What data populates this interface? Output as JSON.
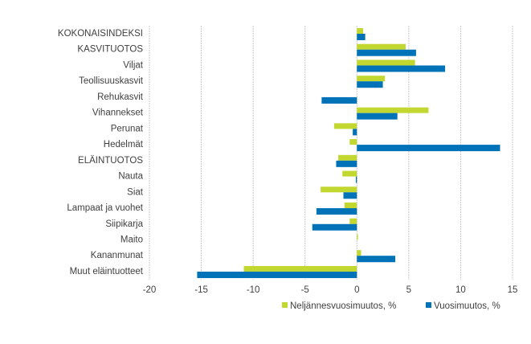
{
  "chart_data": {
    "type": "bar",
    "orientation": "horizontal",
    "categories": [
      "KOKONAISINDEKSI",
      "KASVITUOTOS",
      "Viljat",
      "Teollisuuskasvit",
      "Rehukasvit",
      "Vihannekset",
      "Perunat",
      "Hedelmät",
      "ELÄINTUOTOS",
      "Nauta",
      "Siat",
      "Lampaat ja vuohet",
      "Siipikarja",
      "Maito",
      "Kananmunat",
      "Muut eläintuotteet"
    ],
    "series": [
      {
        "name": "Neljännesvuosimuutos, %",
        "color": "#c2d72f",
        "values": [
          0.6,
          4.7,
          5.6,
          2.7,
          0.0,
          6.9,
          -2.2,
          -0.7,
          -1.8,
          -1.4,
          -3.5,
          -1.2,
          -0.7,
          0.1,
          0.4,
          -10.9
        ]
      },
      {
        "name": "Vuosimuutos, %",
        "color": "#0072b8",
        "values": [
          0.8,
          5.7,
          8.5,
          2.5,
          -3.4,
          3.9,
          -0.4,
          13.8,
          -2.0,
          -0.1,
          -1.3,
          -3.9,
          -4.3,
          0.0,
          3.7,
          -15.4
        ]
      }
    ],
    "xlim": [
      -20,
      15
    ],
    "xticks": [
      "-20",
      "-15",
      "-10",
      "-5",
      "0",
      "5",
      "10",
      "15"
    ],
    "grid": true,
    "legend_position": "bottom",
    "title": "",
    "xlabel": "",
    "ylabel": ""
  }
}
